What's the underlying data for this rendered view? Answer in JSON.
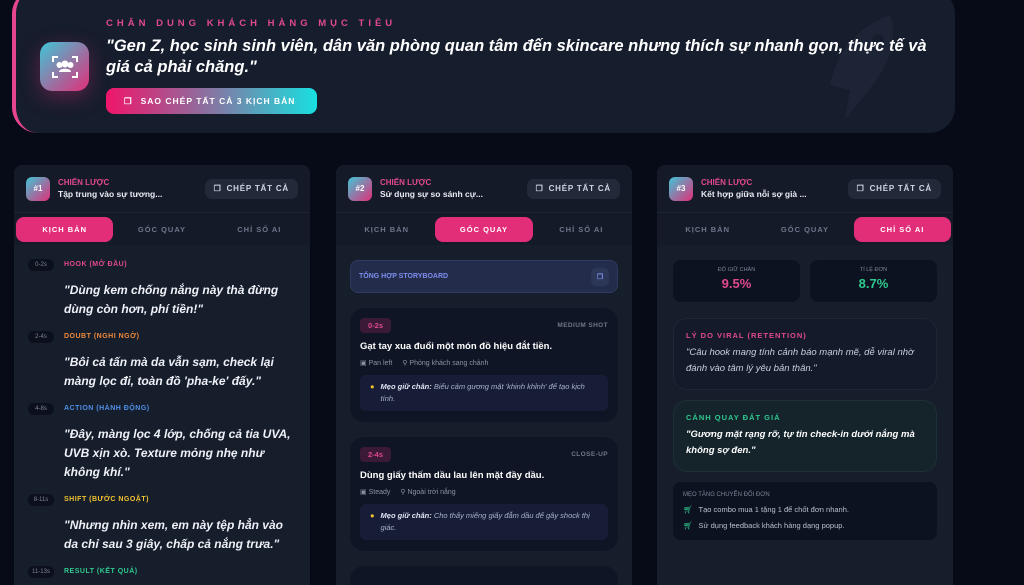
{
  "hero": {
    "label": "CHÂN DUNG KHÁCH HÀNG MỤC TIÊU",
    "quote": "\"Gen Z, học sinh sinh viên, dân văn phòng quan tâm đến skincare nhưng thích sự nhanh gọn, thực tế và giá cả phải chăng.\"",
    "copy_all_label": "SAO CHÉP TẤT CẢ 3 KỊCH BẢN"
  },
  "tabs": [
    "KỊCH BẢN",
    "GÓC QUAY",
    "CHỈ SỐ AI"
  ],
  "strategy_label": "CHIẾN LƯỢC",
  "copy_label": "CHÉP TẤT CẢ",
  "columns": [
    {
      "num": "#1",
      "title": "Tập trung vào sự tương...",
      "active_tab": "KỊCH BẢN",
      "beats": [
        {
          "time": "0-2s",
          "label": "HOOK (MỞ ĐẦU)",
          "color": "#e0498f",
          "quote": "\"Dùng kem chống nắng này thà đừng dùng còn hơn, phí tiền!\""
        },
        {
          "time": "2-4s",
          "label": "DOUBT (NGHI NGỜ)",
          "color": "#f08a3c",
          "quote": "\"Bôi cả tấn mà da vẫn sạm, check lại màng lọc đi, toàn đồ 'pha-ke' đấy.\""
        },
        {
          "time": "4-8s",
          "label": "ACTION (HÀNH ĐỘNG)",
          "color": "#4f8fe8",
          "quote": "\"Đây, màng lọc 4 lớp, chống cả tia UVA, UVB xịn xò. Texture mỏng nhẹ như không khí.\""
        },
        {
          "time": "8-11s",
          "label": "SHIFT (BƯỚC NGOẶT)",
          "color": "#f2c230",
          "quote": "\"Nhưng nhìn xem, em này tệp hẳn vào da chỉ sau 3 giây, chấp cả nắng trưa.\""
        },
        {
          "time": "11-13s",
          "label": "RESULT (KẾT QUẢ)",
          "color": "#2fc98e",
          "quote": ""
        }
      ]
    },
    {
      "num": "#2",
      "title": "Sử dụng sự so sánh cự...",
      "active_tab": "GÓC QUAY",
      "storyboard_label": "TỔNG HỢP STORYBOARD",
      "tip_label": "Mẹo giữ chân:",
      "shots": [
        {
          "time": "0-2s",
          "type": "MEDIUM SHOT",
          "title": "Gạt tay xua đuổi một món đồ hiệu đắt tiền.",
          "camera": "Pan left",
          "location": "Phòng khách sang chảnh",
          "tip": "Biểu cảm gương mặt 'khinh khỉnh' để tạo kịch tính."
        },
        {
          "time": "2-4s",
          "type": "CLOSE-UP",
          "title": "Dùng giấy thấm dầu lau lên mặt đầy dầu.",
          "camera": "Steady",
          "location": "Ngoài trời nắng",
          "tip": "Cho thấy miếng giấy đẫm dầu để gây shock thị giác."
        }
      ]
    },
    {
      "num": "#3",
      "title": "Kết hợp giữa nỗi sợ già ...",
      "active_tab": "CHỈ SỐ AI",
      "stats": [
        {
          "label": "ĐỘ GIỮ CHÂN",
          "value": "9.5%",
          "color": "#e0498f"
        },
        {
          "label": "TỈ LỆ ĐƠN",
          "value": "8.7%",
          "color": "#2fc98e"
        }
      ],
      "viral_label": "LÝ DO VIRAL (RETENTION)",
      "viral_text": "\"Câu hook mang tính cảnh báo mạnh mẽ, dễ viral nhờ đánh vào tâm lý yêu bản thân.\"",
      "scene_label": "CẢNH QUAY ĐẮT GIÁ",
      "scene_text": "\"Gương mặt rạng rỡ, tự tin check-in dưới nắng mà không sợ đen.\"",
      "tips_label": "MẸO TĂNG CHUYỂN ĐỔI ĐƠN",
      "tips": [
        "Tạo combo mua 1 tặng 1 để chốt đơn nhanh.",
        "Sử dụng feedback khách hàng dạng popup."
      ]
    }
  ]
}
